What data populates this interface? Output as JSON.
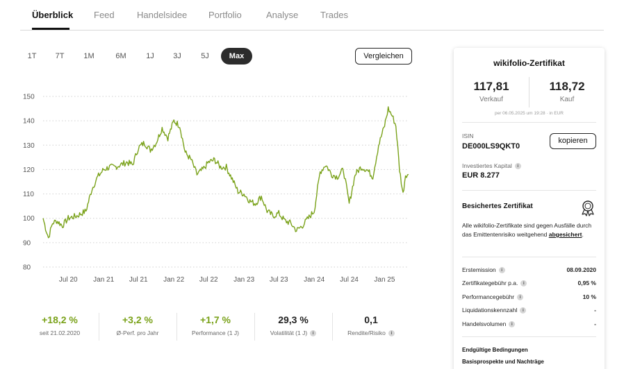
{
  "tabs": [
    {
      "label": "Überblick",
      "active": true
    },
    {
      "label": "Feed"
    },
    {
      "label": "Handelsidee"
    },
    {
      "label": "Portfolio"
    },
    {
      "label": "Analyse"
    },
    {
      "label": "Trades"
    }
  ],
  "ranges": [
    {
      "label": "1T"
    },
    {
      "label": "7T"
    },
    {
      "label": "1M"
    },
    {
      "label": "6M"
    },
    {
      "label": "1J"
    },
    {
      "label": "3J"
    },
    {
      "label": "5J"
    },
    {
      "label": "Max",
      "active": true
    }
  ],
  "compare_label": "Vergleichen",
  "chart_data": {
    "type": "line",
    "line_color": "#7aa21a",
    "grid": "horizontal dotted",
    "ylim": [
      80,
      150
    ],
    "yticks": [
      80,
      90,
      100,
      110,
      120,
      130,
      140,
      150
    ],
    "xticks": [
      "Jul 20",
      "Jan 21",
      "Jul 21",
      "Jan 22",
      "Jul 22",
      "Jan 23",
      "Jul 23",
      "Jan 24",
      "Jul 24",
      "Jan 25"
    ],
    "series": [
      {
        "x": [
          "2020-02-21",
          "2020-03-05",
          "2020-03-20",
          "2020-04-10",
          "2020-05-01",
          "2020-06-01",
          "2020-07-01",
          "2020-08-15",
          "2020-10-01",
          "2020-11-01",
          "2020-12-01",
          "2021-01-01",
          "2021-02-01",
          "2021-03-01",
          "2021-04-01",
          "2021-05-01",
          "2021-06-01",
          "2021-07-01",
          "2021-08-01",
          "2021-09-01",
          "2021-10-01",
          "2021-11-01",
          "2021-12-01",
          "2022-01-01",
          "2022-02-01",
          "2022-03-01",
          "2022-04-01",
          "2022-05-01",
          "2022-06-01",
          "2022-07-01",
          "2022-08-01",
          "2022-09-01",
          "2022-10-01",
          "2022-11-01",
          "2022-12-01",
          "2023-01-01",
          "2023-02-01",
          "2023-03-01",
          "2023-04-01",
          "2023-05-01",
          "2023-06-01",
          "2023-07-01",
          "2023-08-01",
          "2023-09-01",
          "2023-10-01",
          "2023-11-01",
          "2023-12-01",
          "2024-01-01",
          "2024-02-01",
          "2024-03-01",
          "2024-04-01",
          "2024-05-01",
          "2024-06-01",
          "2024-07-01",
          "2024-08-01",
          "2024-09-01",
          "2024-10-01",
          "2024-11-01",
          "2024-12-01",
          "2025-01-01",
          "2025-01-20",
          "2025-02-10",
          "2025-03-01",
          "2025-03-20",
          "2025-04-07",
          "2025-04-20",
          "2025-05-06"
        ],
        "y": [
          100,
          96,
          92,
          98,
          99,
          97,
          100,
          101,
          103,
          112,
          117,
          120,
          121,
          121,
          122,
          123,
          122,
          129,
          131,
          128,
          131,
          137,
          133,
          140,
          138,
          127,
          124,
          118,
          120,
          123,
          124,
          121,
          121,
          116,
          111,
          110,
          107,
          106,
          109,
          103,
          101,
          102,
          99,
          98,
          95,
          97,
          100,
          103,
          119,
          122,
          118,
          117,
          120,
          106,
          118,
          121,
          120,
          117,
          130,
          138,
          145,
          142,
          138,
          120,
          110,
          118,
          118
        ]
      }
    ]
  },
  "kpis": [
    {
      "value": "+18,2 %",
      "label": "seit 21.02.2020",
      "color": "green"
    },
    {
      "value": "+3,2 %",
      "label": "Ø-Perf. pro Jahr",
      "color": "green"
    },
    {
      "value": "+1,7 %",
      "label": "Performance (1 J)",
      "color": "green"
    },
    {
      "value": "29,3 %",
      "label": "Volatilität (1 J)",
      "info": true
    },
    {
      "value": "0,1",
      "label": "Rendite/Risiko",
      "info": true
    }
  ],
  "card": {
    "title": "wikifolio-Zertifikat",
    "sell_value": "117,81",
    "sell_label": "Verkauf",
    "buy_value": "118,72",
    "buy_label": "Kauf",
    "price_note": "per 06.05.2025 um 19:28 · in EUR",
    "isin_label": "ISIN",
    "isin": "DE000LS9QKT0",
    "copy_label": "kopieren",
    "capital_label": "Investiertes Kapital",
    "capital_value": "EUR 8.277",
    "secured_title": "Besichertes Zertifikat",
    "secured_text": "Alle wikifolio-Zertifikate sind gegen Ausfälle durch das Emittentenrisiko weitgehend",
    "secured_link": "abgesichert",
    "secured_end": ".",
    "details": [
      {
        "key": "Erstemission",
        "value": "08.09.2020"
      },
      {
        "key": "Zertifikategebühr p.a.",
        "value": "0,95 %"
      },
      {
        "key": "Performancegebühr",
        "value": "10 %"
      },
      {
        "key": "Liquidationskennzahl",
        "value": "-"
      },
      {
        "key": "Handelsvolumen",
        "value": "-"
      }
    ],
    "doc_links": [
      "Endgültige Bedingungen",
      "Basisprospekte und Nachträge"
    ]
  },
  "info_glyph": "i"
}
